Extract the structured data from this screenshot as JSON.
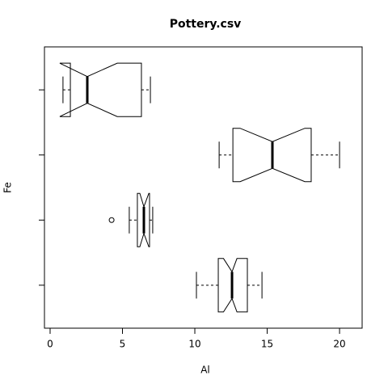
{
  "chart_data": {
    "type": "boxplot",
    "horizontal": true,
    "notch": true,
    "title": "Pottery.csv",
    "x_label": "Al",
    "y_label": "Fe",
    "categories": [
      null,
      null,
      null,
      null
    ],
    "boxes": [
      {
        "whisker_low": 10.11,
        "q1": 11.62,
        "notch_low": 11.98,
        "median": 12.57,
        "notch_high": 12.91,
        "q3": 13.63,
        "whisker_high": 14.64,
        "outliers": []
      },
      {
        "whisker_low": 5.47,
        "q1": 6.03,
        "notch_low": 6.2,
        "median": 6.48,
        "notch_high": 6.82,
        "q3": 6.87,
        "whisker_high": 7.09,
        "outliers": [
          4.25
        ]
      },
      {
        "whisker_low": 11.68,
        "q1": 12.63,
        "notch_low": 13.13,
        "median": 15.36,
        "notch_high": 17.6,
        "q3": 18.04,
        "whisker_high": 20.0,
        "outliers": []
      },
      {
        "whisker_low": 0.89,
        "q1": 1.4,
        "notch_low": 0.67,
        "median": 2.57,
        "notch_high": 4.64,
        "q3": 6.31,
        "whisker_high": 6.93,
        "outliers": []
      }
    ],
    "xlim": [
      -0.39,
      21.56
    ],
    "xticks": [
      0,
      5,
      10,
      15,
      20
    ]
  }
}
